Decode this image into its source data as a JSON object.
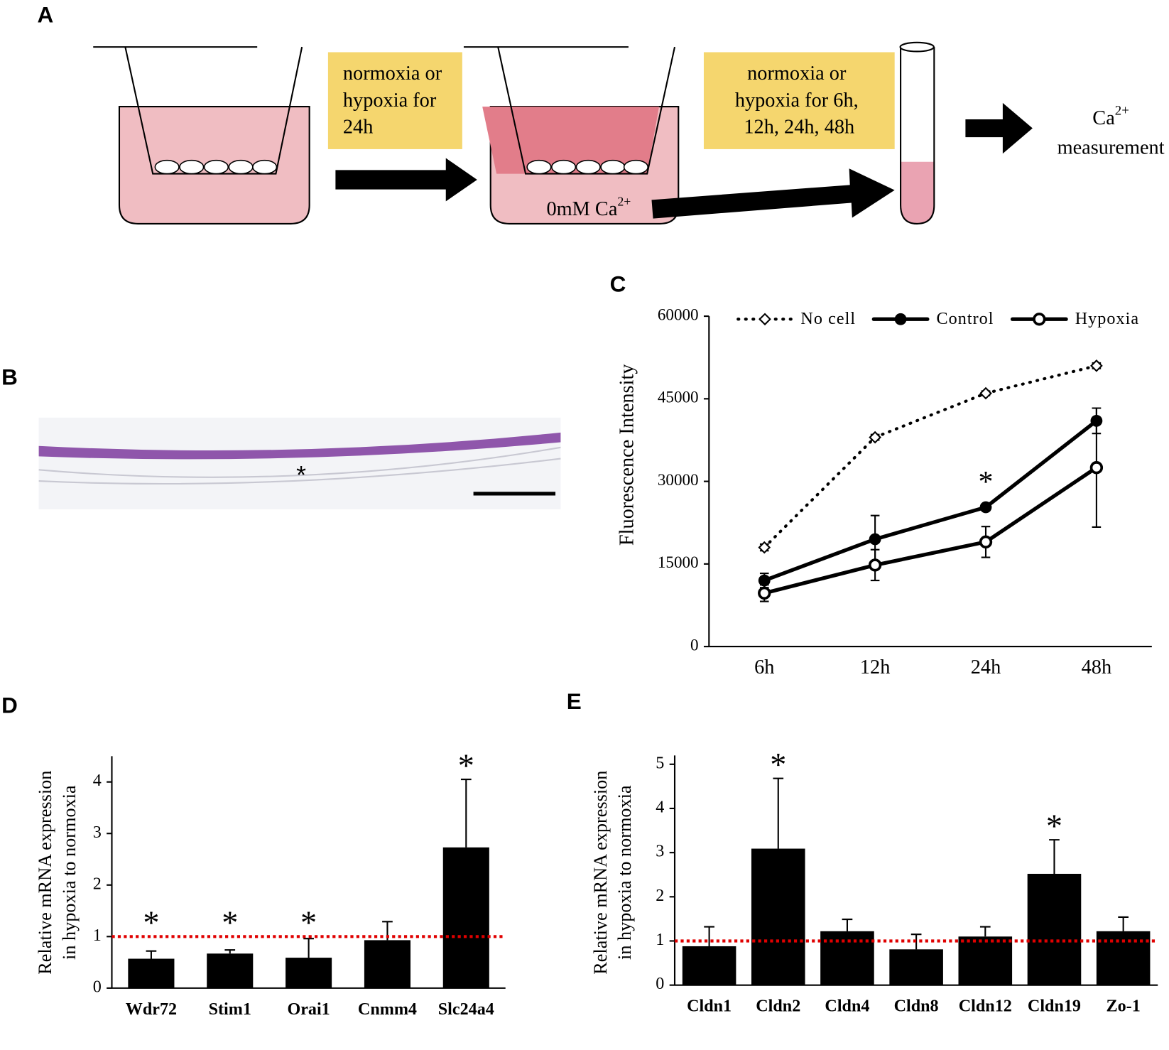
{
  "panel_labels": [
    "A",
    "B",
    "C",
    "D",
    "E"
  ],
  "diagram": {
    "step1": [
      "normoxia or",
      "hypoxia for",
      "24h"
    ],
    "step2": [
      "normoxia or",
      "hypoxia for 6h,",
      "12h, 24h, 48h"
    ],
    "medium": {
      "text": "0mM Ca",
      "sup": "2+"
    },
    "readout": {
      "text": "Ca",
      "sup": "2+",
      "line2": "measurement"
    }
  },
  "micrograph": {
    "annotation": "*"
  },
  "chart_data": [
    {
      "type": "line",
      "ylabel": "Fluorescence Intensity",
      "categories": [
        "6h",
        "12h",
        "24h",
        "48h"
      ],
      "ylim": [
        0,
        60000
      ],
      "yticks": [
        0,
        15000,
        30000,
        45000,
        60000
      ],
      "series": [
        {
          "name": "No cell",
          "color": "#000000",
          "style": "dotted",
          "marker": "diamond",
          "values": [
            18000,
            38000,
            46000,
            51000
          ],
          "errors": [
            600,
            500,
            400,
            500
          ],
          "significance": [
            null,
            null,
            null,
            null
          ]
        },
        {
          "name": "Control",
          "color": "#000000",
          "style": "solid",
          "marker": "filled-circle",
          "values": [
            12000,
            19500,
            25300,
            41000
          ],
          "errors": [
            1300,
            4300,
            600,
            2300
          ],
          "significance": [
            null,
            null,
            "*",
            null
          ]
        },
        {
          "name": "Hypoxia",
          "color": "#000000",
          "style": "solid",
          "marker": "open-circle",
          "values": [
            9700,
            14800,
            19000,
            32500
          ],
          "errors": [
            1500,
            2800,
            2800,
            10800
          ],
          "significance": [
            null,
            null,
            null,
            null
          ]
        }
      ]
    },
    {
      "type": "bar",
      "ylabel": [
        "Relative mRNA expression",
        "in hypoxia to normoxia"
      ],
      "categories": [
        "Wdr72",
        "Stim1",
        "Orai1",
        "Cnmm4",
        "Slc24a4"
      ],
      "values": [
        0.57,
        0.67,
        0.59,
        0.93,
        2.73
      ],
      "errors": [
        0.15,
        0.07,
        0.37,
        0.36,
        1.32
      ],
      "significance": [
        "*",
        "*",
        "*",
        null,
        "*"
      ],
      "color": "#000000",
      "reference_line": {
        "value": 1,
        "color": "#e00000"
      },
      "ylim": [
        0,
        4.5
      ],
      "yticks": [
        0,
        1,
        2,
        3,
        4
      ]
    },
    {
      "type": "bar",
      "ylabel": [
        "Relative mRNA expression",
        "in hypoxia to normoxia"
      ],
      "categories": [
        "Cldn1",
        "Cldn2",
        "Cldn4",
        "Cldn8",
        "Cldn12",
        "Cldn19",
        "Zo-1"
      ],
      "values": [
        0.88,
        3.09,
        1.22,
        0.81,
        1.1,
        2.52,
        1.22
      ],
      "errors": [
        0.44,
        1.59,
        0.27,
        0.34,
        0.22,
        0.77,
        0.32
      ],
      "significance": [
        null,
        "*",
        null,
        null,
        null,
        "*",
        null
      ],
      "color": "#000000",
      "reference_line": {
        "value": 1,
        "color": "#e00000"
      },
      "ylim": [
        0,
        5.2
      ],
      "yticks": [
        0,
        1,
        2,
        3,
        4,
        5
      ]
    }
  ]
}
